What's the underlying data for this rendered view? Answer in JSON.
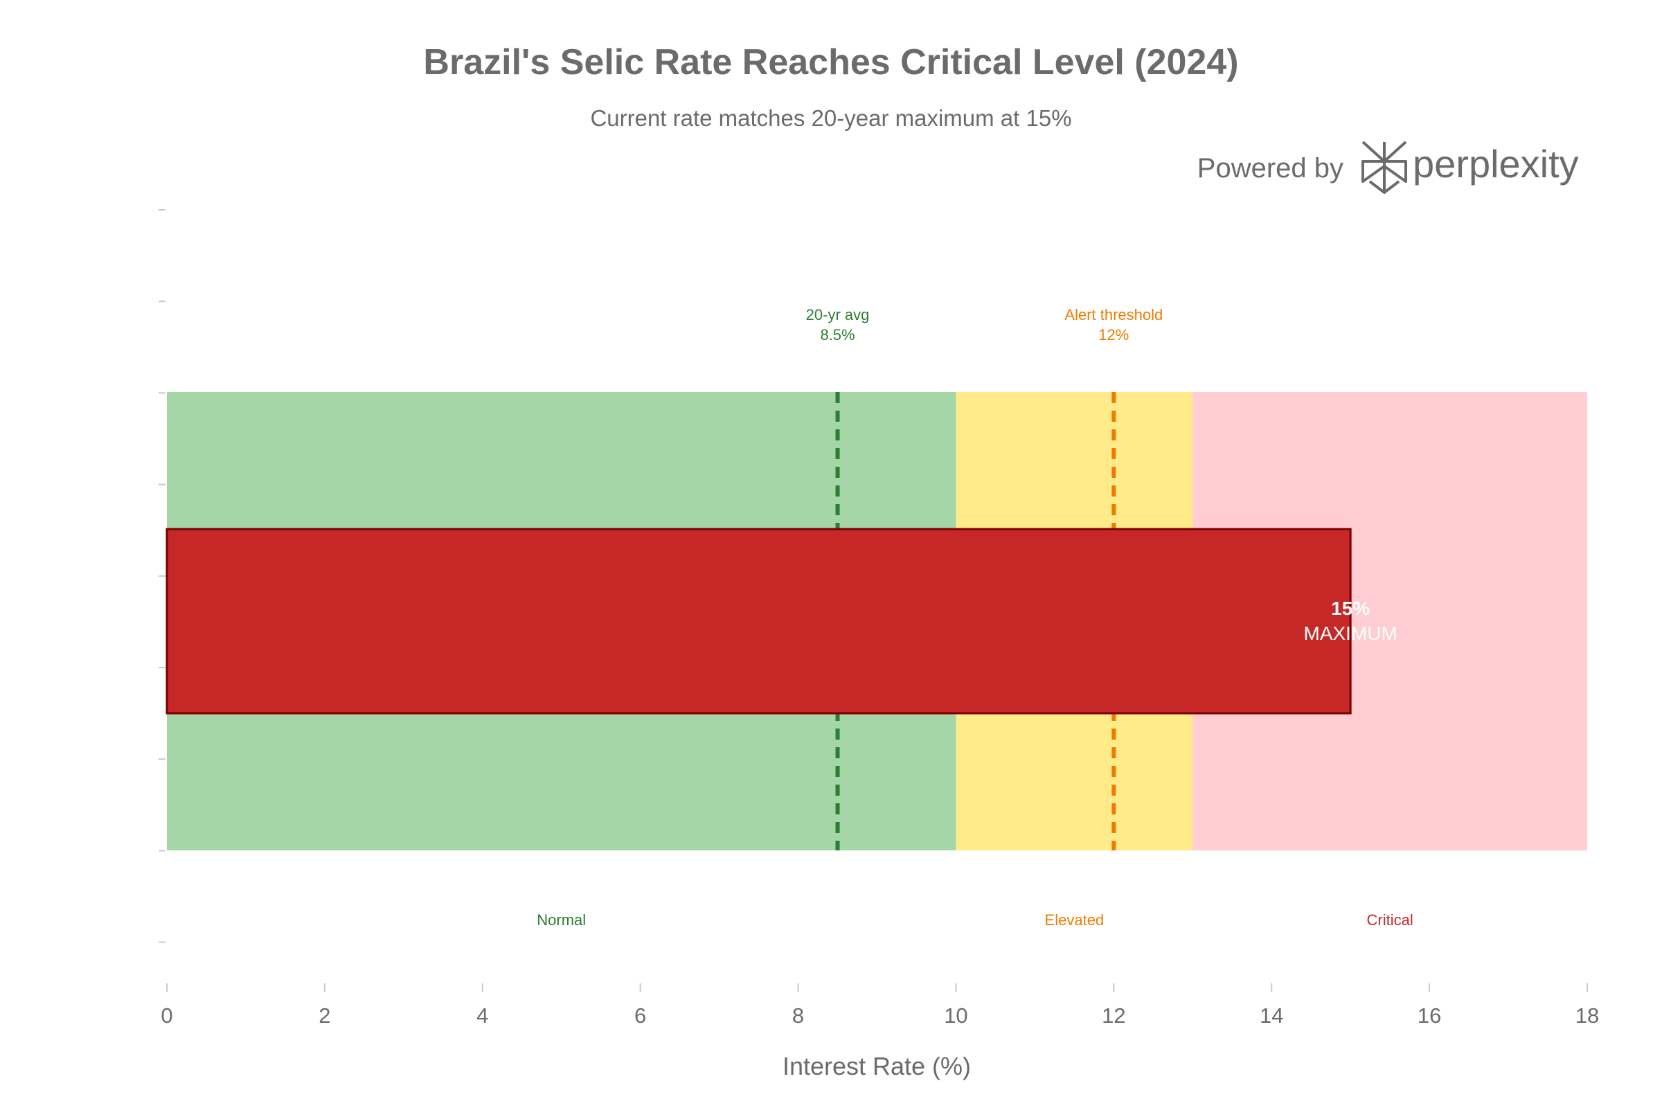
{
  "chart_data": {
    "type": "bar",
    "orientation": "horizontal",
    "title": "Brazil's Selic Rate Reaches Critical Level (2024)",
    "subtitle": "Current rate matches 20-year maximum at 15%",
    "xlabel": "Interest Rate (%)",
    "ylabel": "",
    "xlim": [
      0,
      18
    ],
    "xticks": [
      0,
      2,
      4,
      6,
      8,
      10,
      12,
      14,
      16,
      18
    ],
    "values": [
      15
    ],
    "bar_color": "#c62828",
    "bar_edge_color": "#7a0000",
    "bar_labels": {
      "value": "15%",
      "tag": "MAXIMUM"
    },
    "zones": [
      {
        "label": "Normal",
        "from": 0,
        "to": 10,
        "color": "#a5d6a7",
        "label_color": "#2e7d32"
      },
      {
        "label": "Elevated",
        "from": 10,
        "to": 13,
        "color": "#ffeb8a",
        "label_color": "#ef7c00"
      },
      {
        "label": "Critical",
        "from": 13,
        "to": 18,
        "color": "#ffcdd2",
        "label_color": "#c62828"
      }
    ],
    "reference_lines": [
      {
        "name": "20-yr avg",
        "value_label": "8.5%",
        "x": 8.5,
        "color": "#2e7d32"
      },
      {
        "name": "Alert threshold",
        "value_label": "12%",
        "x": 12,
        "color": "#ef7c00"
      }
    ]
  },
  "branding": {
    "prefix": "Powered by",
    "name": "perplexity"
  }
}
